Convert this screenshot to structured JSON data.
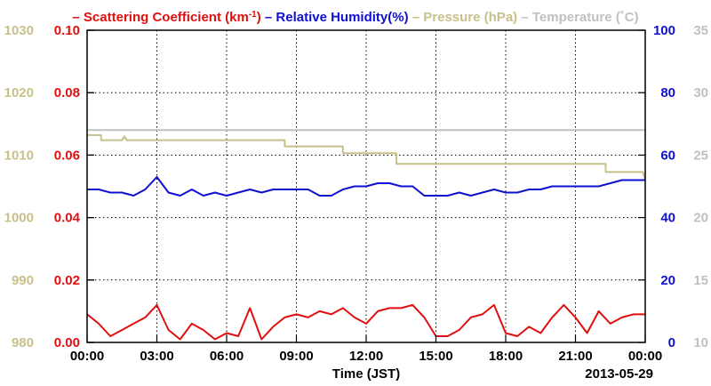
{
  "chart_data": {
    "type": "line",
    "x_axis": {
      "label": "Time (JST)",
      "date_label": "2013-05-29",
      "tick_labels": [
        "00:00",
        "03:00",
        "06:00",
        "09:00",
        "12:00",
        "15:00",
        "18:00",
        "21:00",
        "00:00"
      ],
      "range_hours": [
        0,
        24
      ]
    },
    "axes": {
      "pressure": {
        "ylim": [
          980,
          1030
        ],
        "tick_labels": [
          "980",
          "990",
          "1000",
          "1010",
          "1020",
          "1030"
        ],
        "color": "#c8c08a"
      },
      "scattering": {
        "ylim": [
          0,
          0.1
        ],
        "tick_labels": [
          "0.00",
          "0.02",
          "0.04",
          "0.06",
          "0.08",
          "0.10"
        ],
        "color": "#e01010"
      },
      "humidity": {
        "ylim": [
          0,
          100
        ],
        "tick_labels": [
          "0",
          "20",
          "40",
          "60",
          "80",
          "100"
        ],
        "color": "#1010d0"
      },
      "temperature": {
        "ylim": [
          10,
          35
        ],
        "tick_labels": [
          "10",
          "15",
          "20",
          "25",
          "30",
          "35"
        ],
        "color": "#c0c0c0"
      }
    },
    "legend": [
      {
        "prefix": "–",
        "text": "Scattering Coefficient (km",
        "sup": "-1",
        "suffix": ")",
        "color": "#e01010"
      },
      {
        "prefix": "–",
        "text": "Relative Humidity(%)",
        "sup": "",
        "suffix": "",
        "color": "#1010d0"
      },
      {
        "prefix": "–",
        "text": "Pressure (hPa)",
        "sup": "",
        "suffix": "",
        "color": "#c8c08a"
      },
      {
        "prefix": "–",
        "text": "Temperature (˚C)",
        "sup": "",
        "suffix": "",
        "color": "#c0c0c0"
      }
    ],
    "grid": true,
    "series": [
      {
        "name": "Scattering Coefficient (km-1)",
        "axis": "scattering",
        "color": "#e01010",
        "x": [
          0,
          0.5,
          1,
          1.5,
          2,
          2.5,
          3,
          3.5,
          4,
          4.5,
          5,
          5.5,
          6,
          6.5,
          7,
          7.5,
          8,
          8.5,
          9,
          9.5,
          10,
          10.5,
          11,
          11.5,
          12,
          12.5,
          13,
          13.5,
          14,
          14.5,
          15,
          15.5,
          16,
          16.5,
          17,
          17.5,
          18,
          18.5,
          19,
          19.5,
          20,
          20.5,
          21,
          21.5,
          22,
          22.5,
          23,
          23.5,
          24
        ],
        "y": [
          0.009,
          0.006,
          0.002,
          0.004,
          0.006,
          0.008,
          0.012,
          0.004,
          0.001,
          0.006,
          0.004,
          0.001,
          0.003,
          0.002,
          0.011,
          0.001,
          0.005,
          0.008,
          0.009,
          0.008,
          0.01,
          0.009,
          0.011,
          0.008,
          0.006,
          0.01,
          0.011,
          0.011,
          0.012,
          0.008,
          0.002,
          0.002,
          0.004,
          0.008,
          0.009,
          0.012,
          0.003,
          0.002,
          0.005,
          0.003,
          0.008,
          0.012,
          0.008,
          0.003,
          0.01,
          0.006,
          0.008,
          0.009,
          0.009
        ]
      },
      {
        "name": "Relative Humidity(%)",
        "axis": "humidity",
        "color": "#1010d0",
        "x": [
          0,
          0.5,
          1,
          1.5,
          2,
          2.5,
          3,
          3.5,
          4,
          4.5,
          5,
          5.5,
          6,
          6.5,
          7,
          7.5,
          8,
          8.5,
          9,
          9.5,
          10,
          10.5,
          11,
          11.5,
          12,
          12.5,
          13,
          13.5,
          14,
          14.5,
          15,
          15.5,
          16,
          16.5,
          17,
          17.5,
          18,
          18.5,
          19,
          19.5,
          20,
          20.5,
          21,
          21.5,
          22,
          22.5,
          23,
          23.5,
          24
        ],
        "y": [
          49,
          49,
          48,
          48,
          47,
          49,
          53,
          48,
          47,
          49,
          47,
          48,
          47,
          48,
          49,
          48,
          49,
          49,
          49,
          49,
          47,
          47,
          49,
          50,
          50,
          51,
          51,
          50,
          50,
          47,
          47,
          47,
          48,
          47,
          48,
          49,
          48,
          48,
          49,
          49,
          50,
          50,
          50,
          50,
          50,
          51,
          52,
          52,
          52
        ]
      },
      {
        "name": "Pressure (hPa)",
        "axis": "pressure",
        "color": "#c8c08a",
        "x": [
          0,
          0.6,
          0.6,
          1.5,
          1.6,
          1.7,
          8.5,
          8.5,
          11,
          11,
          13.3,
          13.3,
          22.3,
          22.3,
          23.9,
          24
        ],
        "y": [
          1013.2,
          1013.2,
          1012.4,
          1012.4,
          1013.0,
          1012.4,
          1012.4,
          1011.4,
          1011.4,
          1010.3,
          1010.3,
          1008.6,
          1008.6,
          1007.3,
          1007.3,
          1006.0
        ]
      },
      {
        "name": "Temperature (˚C)",
        "axis": "temperature",
        "color": "#c0c0c0",
        "x": [
          0,
          24
        ],
        "y": [
          27.0,
          27.0
        ]
      }
    ]
  }
}
